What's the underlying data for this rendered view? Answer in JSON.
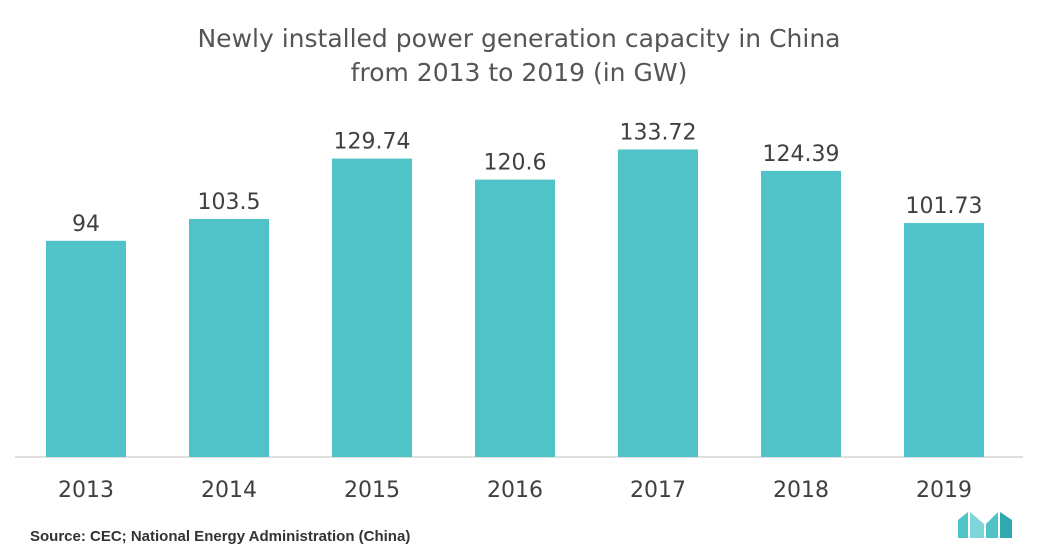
{
  "chart_data": {
    "type": "bar",
    "title_line1": "Newly installed power generation capacity in China",
    "title_line2": "from 2013 to 2019 (in GW)",
    "categories": [
      "2013",
      "2014",
      "2015",
      "2016",
      "2017",
      "2018",
      "2019"
    ],
    "values": [
      94,
      103.5,
      129.74,
      120.6,
      133.72,
      124.39,
      101.73
    ],
    "value_labels": [
      "94",
      "103.5",
      "129.74",
      "120.6",
      "133.72",
      "124.39",
      "101.73"
    ],
    "xlabel": "",
    "ylabel": "",
    "ylim": [
      0,
      145
    ],
    "grid": false,
    "legend": "none",
    "bar_color": "#4fc3c8"
  },
  "source": "Source: CEC; National Energy Administration (China)",
  "logo": {
    "icon": "mordor-intelligence-logo-icon",
    "color": "#4fc3c8"
  }
}
